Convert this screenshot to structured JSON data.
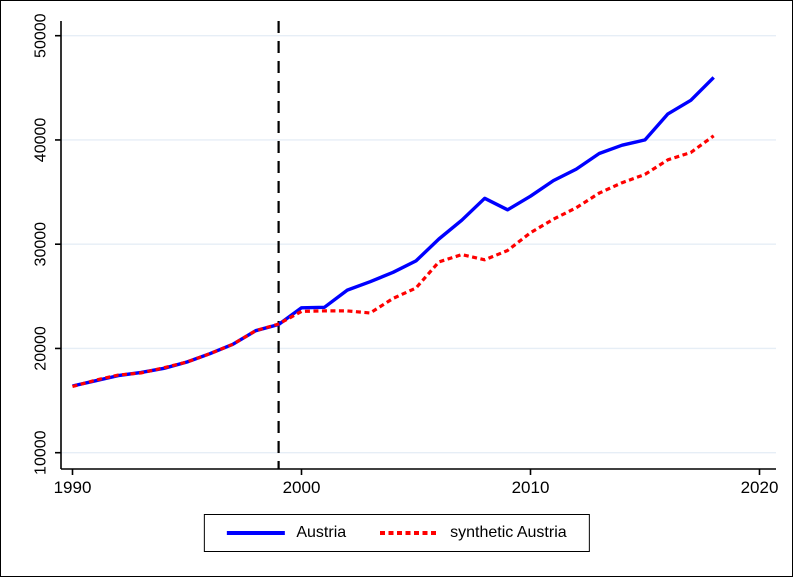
{
  "chart_data": {
    "type": "line",
    "title": "",
    "xlabel": "",
    "ylabel": "",
    "x": [
      1990,
      1991,
      1992,
      1993,
      1994,
      1995,
      1996,
      1997,
      1998,
      1999,
      2000,
      2001,
      2002,
      2003,
      2004,
      2005,
      2006,
      2007,
      2008,
      2009,
      2010,
      2011,
      2012,
      2013,
      2014,
      2015,
      2016,
      2017,
      2018
    ],
    "series": [
      {
        "name": "Austria",
        "color": "#0000ff",
        "line_style": "solid",
        "values": [
          16400,
          16900,
          17400,
          17700,
          18100,
          18700,
          19500,
          20400,
          21700,
          22300,
          23900,
          23950,
          25600,
          26400,
          27300,
          28400,
          30500,
          32300,
          34400,
          33300,
          34600,
          36100,
          37200,
          38700,
          39500,
          40000,
          42500,
          43800,
          46000
        ]
      },
      {
        "name": "synthetic Austria",
        "color": "#ff0000",
        "line_style": "dotted",
        "values": [
          16350,
          16950,
          17450,
          17650,
          18150,
          18700,
          19500,
          20400,
          21700,
          22350,
          23550,
          23600,
          23600,
          23400,
          24800,
          25800,
          28300,
          29000,
          28500,
          29400,
          31100,
          32400,
          33500,
          34900,
          35900,
          36700,
          38100,
          38800,
          40400
        ]
      }
    ],
    "vline": {
      "x": 1999,
      "style": "dashed",
      "color": "#000000"
    },
    "xticks": [
      "1990",
      "2000",
      "2010",
      "2020"
    ],
    "xtick_values": [
      1990,
      2000,
      2010,
      2020
    ],
    "yticks": [
      "10000",
      "20000",
      "30000",
      "40000",
      "50000"
    ],
    "ytick_values": [
      10000,
      20000,
      30000,
      40000,
      50000
    ],
    "xlim": [
      1989.5,
      2020.7
    ],
    "ylim": [
      10000,
      50000
    ],
    "grid": "horizontal",
    "grid_color": "#e6eef6",
    "axis_color": "#000000",
    "legend": {
      "position": "bottom-center",
      "border": true,
      "entries": [
        "Austria",
        "synthetic Austria"
      ]
    }
  }
}
